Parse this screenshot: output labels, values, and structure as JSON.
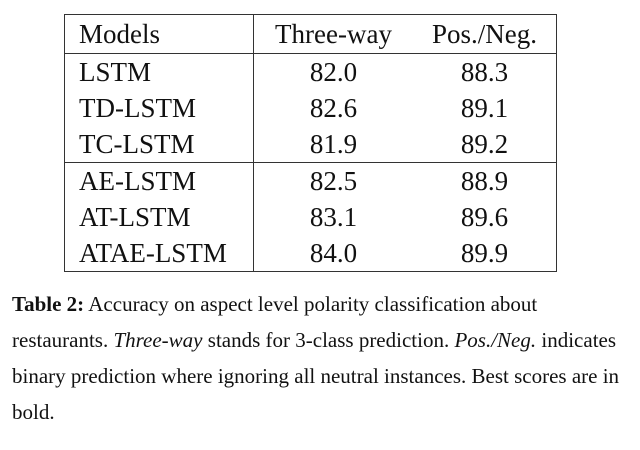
{
  "table": {
    "headers": [
      "Models",
      "Three-way",
      "Pos./Neg."
    ],
    "rows": [
      {
        "model": "LSTM",
        "three_way": "82.0",
        "pos_neg": "88.3"
      },
      {
        "model": "TD-LSTM",
        "three_way": "82.6",
        "pos_neg": "89.1"
      },
      {
        "model": "TC-LSTM",
        "three_way": "81.9",
        "pos_neg": "89.2"
      },
      {
        "model": "AE-LSTM",
        "three_way": "82.5",
        "pos_neg": "88.9"
      },
      {
        "model": "AT-LSTM",
        "three_way": "83.1",
        "pos_neg": "89.6"
      },
      {
        "model": "ATAE-LSTM",
        "three_way": "84.0",
        "pos_neg": "89.9"
      }
    ]
  },
  "caption": {
    "label": "Table 2:",
    "text1": " Accuracy on aspect level polarity classification about restaurants. ",
    "em1": "Three-way",
    "text2": " stands for 3-class prediction. ",
    "em2": "Pos./Neg.",
    "text3": " indicates binary prediction where ignoring all neutral instances. Best scores are in bold."
  }
}
